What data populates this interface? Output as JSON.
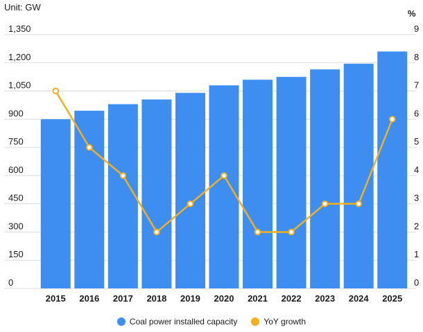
{
  "unit_label": "Unit: GW",
  "right_axis_unit": "%",
  "legend": {
    "bar_label": "Coal power installed capacity",
    "line_label": "YoY growth"
  },
  "colors": {
    "bar": "#3d8ef0",
    "line": "#f2b01e",
    "marker_fill": "#ffffff",
    "grid": "#dcdcdc"
  },
  "chart_data": {
    "type": "bar",
    "categories": [
      "2015",
      "2016",
      "2017",
      "2018",
      "2019",
      "2020",
      "2021",
      "2022",
      "2023",
      "2024",
      "2025"
    ],
    "series": [
      {
        "name": "Coal power installed capacity",
        "type": "bar",
        "axis": "left",
        "values": [
          900,
          945,
          980,
          1005,
          1040,
          1080,
          1110,
          1125,
          1165,
          1195,
          1260
        ]
      },
      {
        "name": "YoY growth",
        "type": "line",
        "axis": "right",
        "values": [
          7,
          5,
          4,
          2,
          3,
          4,
          2,
          2,
          3,
          3,
          6
        ]
      }
    ],
    "y_left": {
      "ylim": [
        0,
        1350
      ],
      "ticks": [
        "0",
        "150",
        "300",
        "450",
        "600",
        "750",
        "900",
        "1,050",
        "1,200",
        "1,350"
      ]
    },
    "y_right": {
      "ylim": [
        0,
        9
      ],
      "ticks": [
        "0",
        "1",
        "2",
        "3",
        "4",
        "5",
        "6",
        "7",
        "8",
        "9"
      ]
    },
    "grid": true,
    "legend_position": "bottom"
  }
}
